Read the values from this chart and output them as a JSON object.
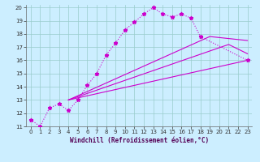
{
  "xlabel": "Windchill (Refroidissement éolien,°C)",
  "xlim": [
    -0.5,
    23.5
  ],
  "ylim": [
    11,
    20.2
  ],
  "xticks": [
    0,
    1,
    2,
    3,
    4,
    5,
    6,
    7,
    8,
    9,
    10,
    11,
    12,
    13,
    14,
    15,
    16,
    17,
    18,
    19,
    20,
    21,
    22,
    23
  ],
  "yticks": [
    11,
    12,
    13,
    14,
    15,
    16,
    17,
    18,
    19,
    20
  ],
  "bg_color": "#cceeff",
  "grid_color": "#99cccc",
  "line_color": "#cc00cc",
  "series": [
    {
      "x": [
        0,
        1,
        2,
        3,
        4,
        5,
        6,
        7,
        8,
        9,
        10,
        11,
        12,
        13,
        14,
        15,
        16,
        17,
        18,
        23
      ],
      "y": [
        11.5,
        11.0,
        12.4,
        12.7,
        12.2,
        13.0,
        14.1,
        15.0,
        16.4,
        17.3,
        18.3,
        18.9,
        19.5,
        20.0,
        19.5,
        19.3,
        19.5,
        19.2,
        17.8,
        16.0
      ],
      "linestyle": "dotted",
      "marker": true
    },
    {
      "x": [
        4,
        23
      ],
      "y": [
        13.0,
        16.0
      ],
      "linestyle": "solid",
      "marker": false
    },
    {
      "x": [
        4,
        21,
        23
      ],
      "y": [
        13.0,
        17.2,
        16.5
      ],
      "linestyle": "solid",
      "marker": false
    },
    {
      "x": [
        4,
        19,
        23
      ],
      "y": [
        13.0,
        17.8,
        17.5
      ],
      "linestyle": "solid",
      "marker": false
    }
  ]
}
